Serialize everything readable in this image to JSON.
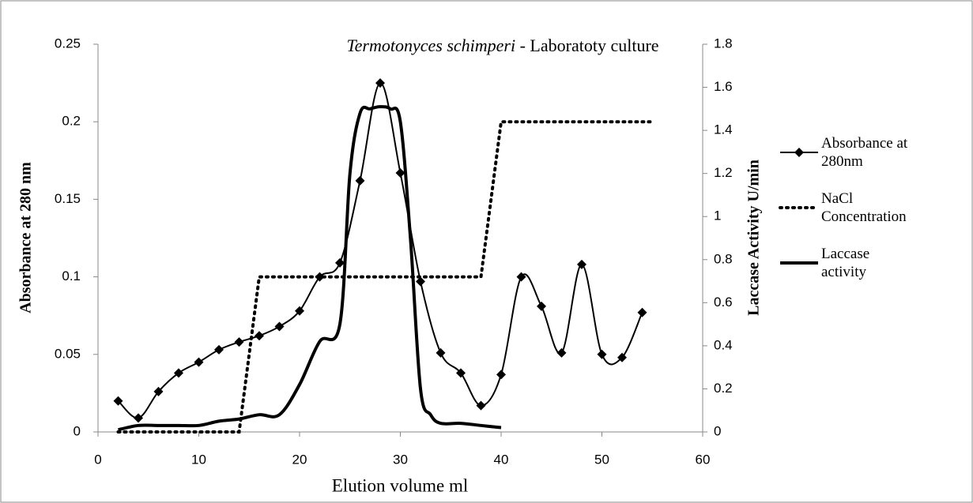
{
  "chart_data": {
    "type": "line",
    "title": {
      "species": "Termotonyces schimperi",
      "text": "- Laboratoty culture"
    },
    "xlabel": "Elution volume ml",
    "ylabel": "Absorbance at 280 nm",
    "y2label": "Laccase Activity U/min",
    "xlim": [
      0,
      60
    ],
    "xticks": [
      0,
      10,
      20,
      30,
      40,
      50,
      60
    ],
    "ylim": [
      0,
      0.25
    ],
    "yticks": [
      0,
      0.05,
      0.1,
      0.15,
      0.2,
      0.25
    ],
    "y2lim": [
      0,
      1.8
    ],
    "y2ticks": [
      0,
      0.2,
      0.4,
      0.6,
      0.8,
      1,
      1.2,
      1.4,
      1.6,
      1.8
    ],
    "grid": false,
    "legend": "right",
    "series": [
      {
        "name": "Absorbance at 280nm",
        "color": "#000000",
        "style": "solid",
        "marker": "diamond",
        "smooth": true,
        "x": [
          2,
          4,
          6,
          8,
          10,
          12,
          14,
          16,
          18,
          20,
          22,
          24,
          26,
          28,
          30,
          32,
          34,
          36,
          38,
          40,
          42,
          44,
          46,
          48,
          50,
          52,
          54
        ],
        "values": [
          0.02,
          0.009,
          0.026,
          0.038,
          0.045,
          0.053,
          0.058,
          0.062,
          0.068,
          0.078,
          0.1,
          0.109,
          0.162,
          0.225,
          0.167,
          0.097,
          0.051,
          0.038,
          0.017,
          0.037,
          0.1,
          0.081,
          0.051,
          0.108,
          0.05,
          0.048,
          0.077
        ]
      },
      {
        "name": "NaCl Concentration",
        "color": "#000000",
        "style": "dotted",
        "marker": "none",
        "smooth": false,
        "x": [
          2,
          14,
          16,
          38,
          40,
          55
        ],
        "values": [
          0,
          0,
          0.1,
          0.1,
          0.2,
          0.2
        ]
      },
      {
        "name": "Laccase activity",
        "color": "#000000",
        "style": "solid",
        "marker": "none",
        "smooth": true,
        "axis": "y2",
        "x": [
          2,
          4,
          6,
          8,
          10,
          12,
          14,
          16,
          18,
          20,
          22,
          24,
          25,
          26,
          27,
          28,
          29,
          30,
          31,
          32,
          33,
          34,
          36,
          38,
          40
        ],
        "values": [
          0.01,
          0.03,
          0.03,
          0.03,
          0.03,
          0.05,
          0.06,
          0.08,
          0.08,
          0.22,
          0.42,
          0.5,
          1.2,
          1.48,
          1.5,
          1.51,
          1.5,
          1.44,
          0.9,
          0.2,
          0.08,
          0.04,
          0.04,
          0.03,
          0.02
        ]
      }
    ]
  }
}
